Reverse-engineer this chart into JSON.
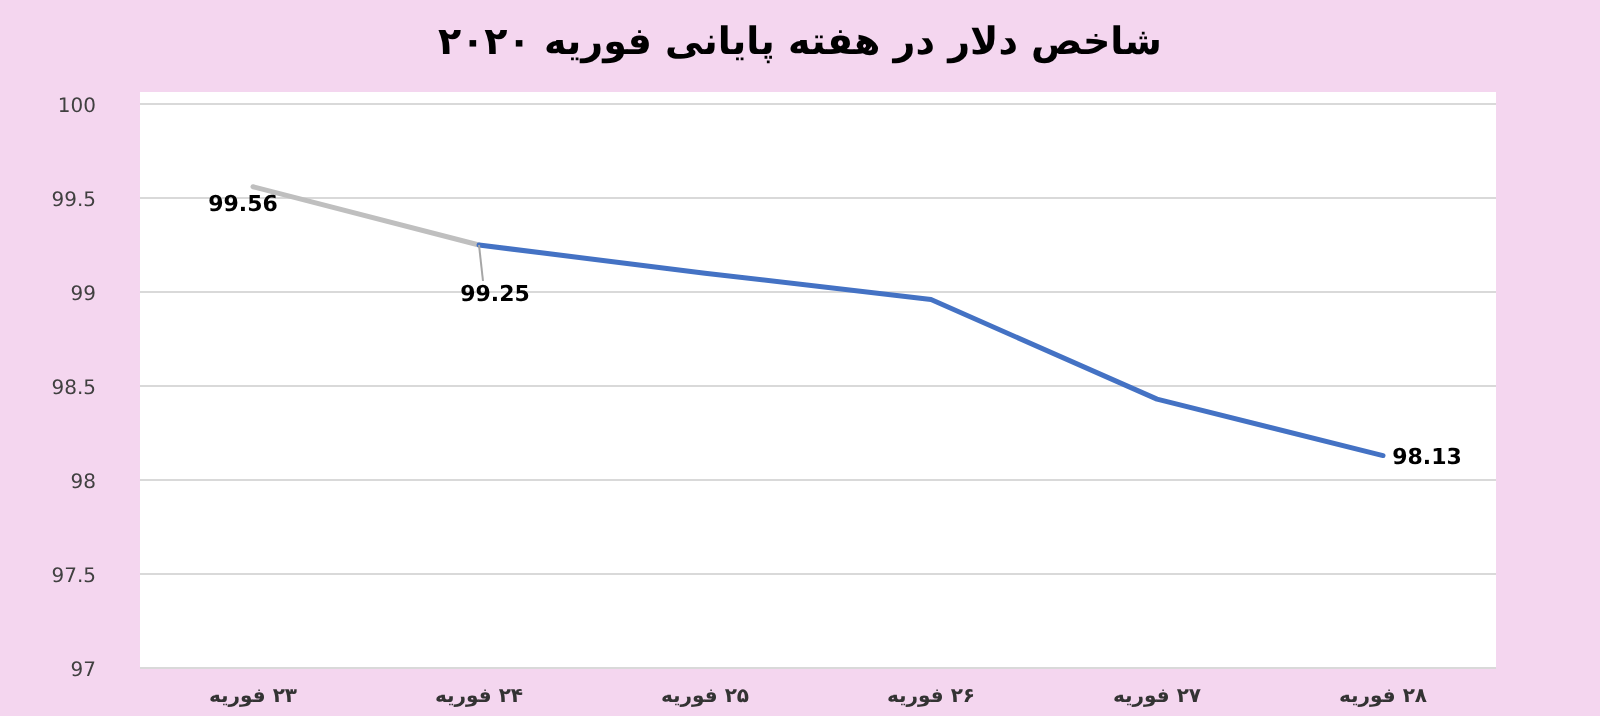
{
  "chart_data": {
    "type": "line",
    "title": "شاخص دلار در هفته پایانی فوریه ۲۰۲۰",
    "categories": [
      "۲۳ فوریه",
      "۲۴ فوریه",
      "۲۵ فوریه",
      "۲۶ فوریه",
      "۲۷ فوریه",
      "۲۸ فوریه"
    ],
    "series": [
      {
        "color": "#bfbfbf",
        "values": [
          99.56,
          99.25,
          null,
          null,
          null,
          null
        ],
        "value_labels": [
          "99.56",
          null,
          null,
          null,
          null,
          null
        ]
      },
      {
        "color": "#4472c4",
        "values": [
          null,
          99.25,
          99.1,
          98.96,
          98.43,
          98.13
        ],
        "value_labels": [
          null,
          "99.25",
          null,
          null,
          null,
          "98.13"
        ]
      }
    ],
    "ylim": [
      97,
      100
    ],
    "yticks": [
      97,
      97.5,
      98,
      98.5,
      99,
      99.5,
      100
    ],
    "grid": "y"
  }
}
